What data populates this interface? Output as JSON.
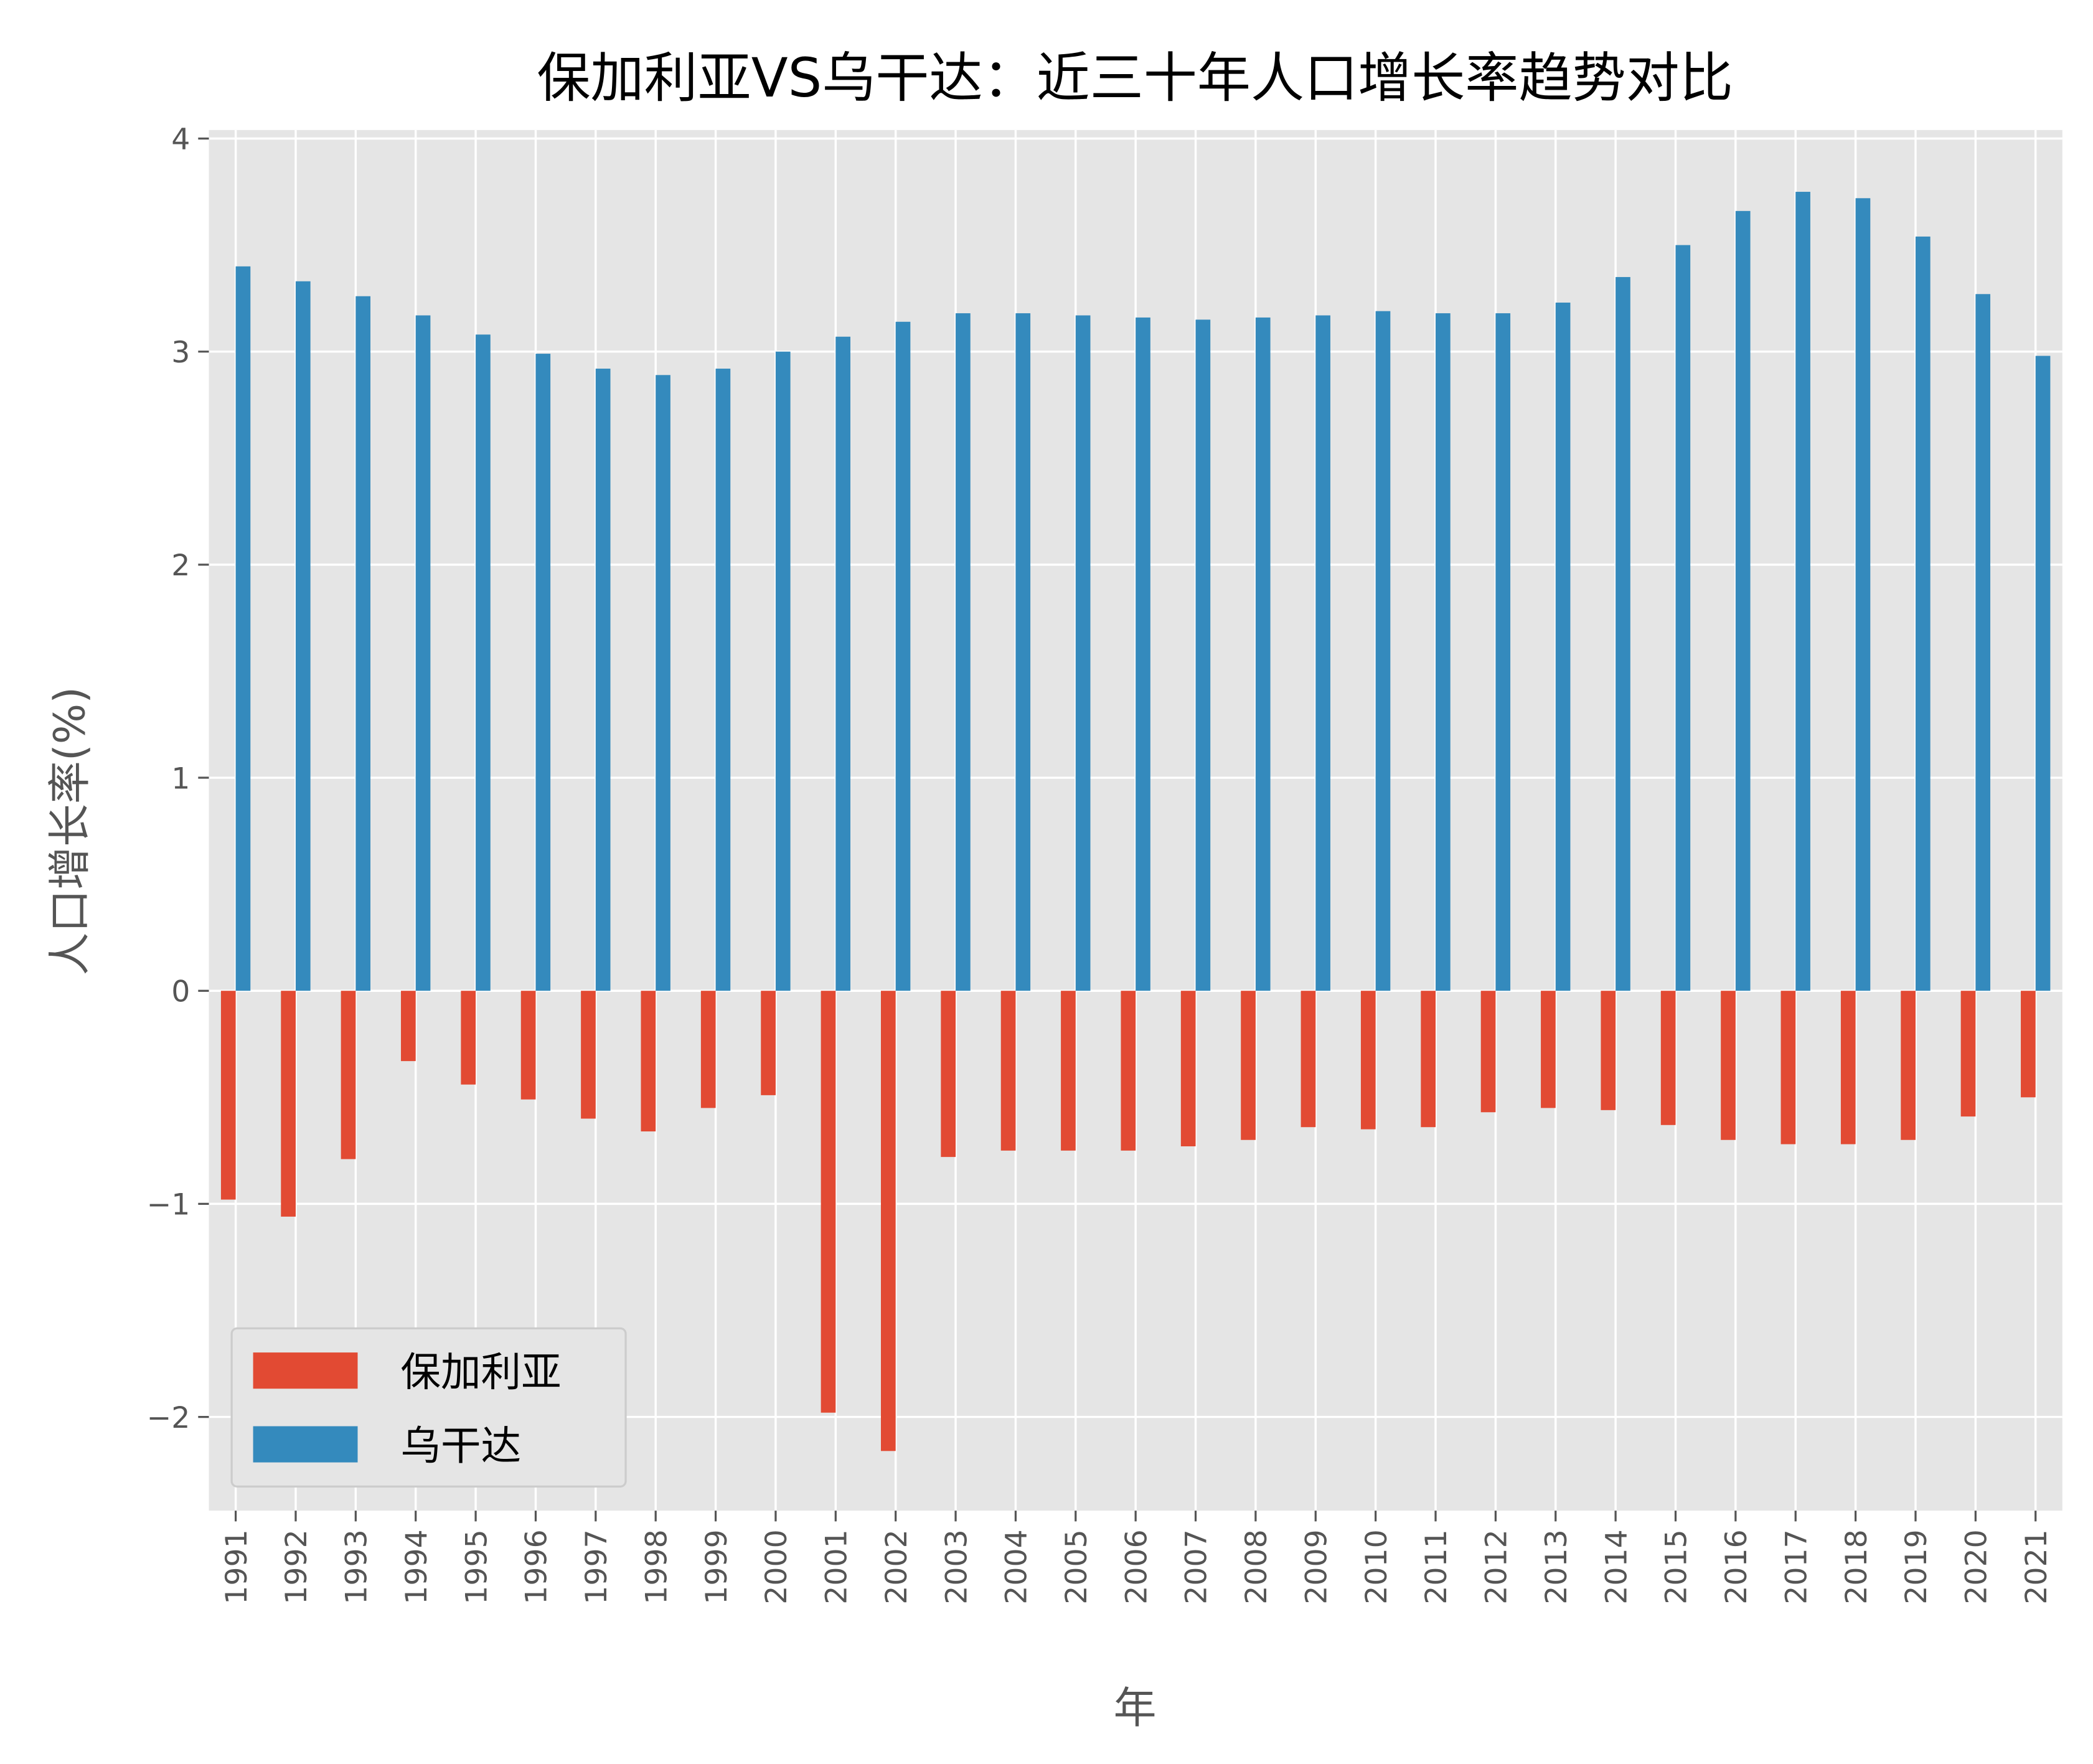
{
  "chart_data": {
    "type": "bar",
    "title": "保加利亚VS乌干达：近三十年人口增长率趋势对比",
    "xlabel": "年",
    "ylabel": "人口增长率(%)",
    "ylim": [
      -2.44,
      4.04
    ],
    "yticks": [
      -2,
      -1,
      0,
      1,
      2,
      3,
      4
    ],
    "ytick_labels": [
      "−2",
      "−1",
      "0",
      "1",
      "2",
      "3",
      "4"
    ],
    "grid": true,
    "legend_placement": "lower-left",
    "categories": [
      "1991",
      "1992",
      "1993",
      "1994",
      "1995",
      "1996",
      "1997",
      "1998",
      "1999",
      "2000",
      "2001",
      "2002",
      "2003",
      "2004",
      "2005",
      "2006",
      "2007",
      "2008",
      "2009",
      "2010",
      "2011",
      "2012",
      "2013",
      "2014",
      "2015",
      "2016",
      "2017",
      "2018",
      "2019",
      "2020",
      "2021"
    ],
    "series": [
      {
        "name": "保加利亚",
        "color": "#E24A33",
        "values": [
          -0.98,
          -1.06,
          -0.79,
          -0.33,
          -0.44,
          -0.51,
          -0.6,
          -0.66,
          -0.55,
          -0.49,
          -1.98,
          -2.16,
          -0.78,
          -0.75,
          -0.75,
          -0.75,
          -0.73,
          -0.7,
          -0.64,
          -0.65,
          -0.64,
          -0.57,
          -0.55,
          -0.56,
          -0.63,
          -0.7,
          -0.72,
          -0.72,
          -0.7,
          -0.59,
          -0.5
        ]
      },
      {
        "name": "乌干达",
        "color": "#348ABD",
        "values": [
          3.4,
          3.33,
          3.26,
          3.17,
          3.08,
          2.99,
          2.92,
          2.89,
          2.92,
          3.0,
          3.07,
          3.14,
          3.18,
          3.18,
          3.17,
          3.16,
          3.15,
          3.16,
          3.17,
          3.19,
          3.18,
          3.18,
          3.23,
          3.35,
          3.5,
          3.66,
          3.75,
          3.72,
          3.54,
          3.27,
          2.98
        ]
      }
    ],
    "colors": {
      "plot_background": "#E5E5E5",
      "grid": "#FFFFFF"
    }
  }
}
